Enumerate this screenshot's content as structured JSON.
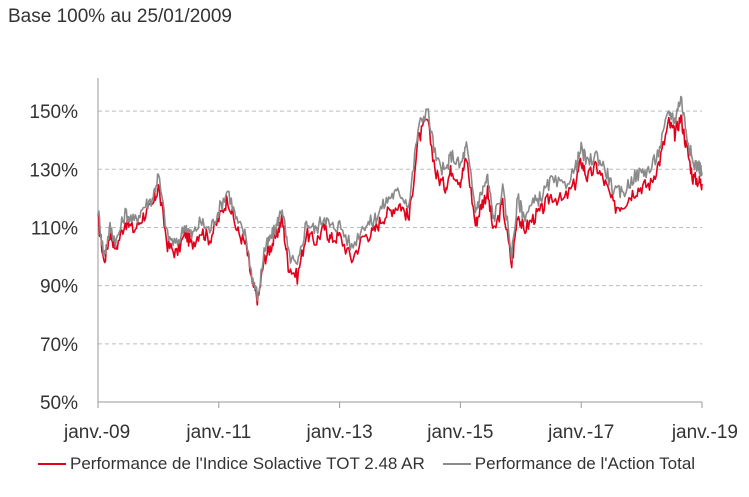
{
  "chart_data": {
    "type": "line",
    "subtitle": "Base 100% au 25/01/2009",
    "ylim": [
      50,
      160
    ],
    "yticks": [
      50,
      70,
      90,
      110,
      130,
      150
    ],
    "ytick_labels": [
      "50%",
      "70%",
      "90%",
      "110%",
      "130%",
      "150%"
    ],
    "xlim": [
      2009.0,
      2019.0
    ],
    "xticks": [
      2009,
      2011,
      2013,
      2015,
      2017,
      2019
    ],
    "xtick_labels": [
      "janv.-09",
      "janv.-11",
      "janv.-13",
      "janv.-15",
      "janv.-17",
      "janv.-19"
    ],
    "grid": "horizontal dashed",
    "legend_position": "bottom",
    "series": [
      {
        "name": "Performance de l'Indice Solactive TOT 2.48 AR",
        "color": "#e3001b",
        "x": [
          2009.0,
          2009.1,
          2009.2,
          2009.3,
          2009.45,
          2009.6,
          2009.75,
          2009.9,
          2010.0,
          2010.15,
          2010.3,
          2010.45,
          2010.55,
          2010.7,
          2010.85,
          2011.0,
          2011.15,
          2011.3,
          2011.45,
          2011.55,
          2011.65,
          2011.75,
          2011.85,
          2011.95,
          2012.05,
          2012.15,
          2012.3,
          2012.45,
          2012.6,
          2012.75,
          2012.85,
          2013.0,
          2013.2,
          2013.4,
          2013.55,
          2013.7,
          2013.85,
          2014.0,
          2014.15,
          2014.3,
          2014.45,
          2014.6,
          2014.75,
          2014.85,
          2015.0,
          2015.1,
          2015.25,
          2015.35,
          2015.45,
          2015.55,
          2015.7,
          2015.85,
          2015.95,
          2016.05,
          2016.2,
          2016.35,
          2016.5,
          2016.7,
          2016.9,
          2017.0,
          2017.1,
          2017.25,
          2017.4,
          2017.55,
          2017.7,
          2017.85,
          2018.0,
          2018.15,
          2018.3,
          2018.45,
          2018.55,
          2018.65,
          2018.75,
          2018.85,
          2018.95,
          2019.0
        ],
        "y": [
          113,
          98,
          108,
          103,
          112,
          109,
          114,
          117,
          124,
          104,
          101,
          108,
          104,
          109,
          106,
          113,
          120,
          109,
          104,
          91,
          85,
          99,
          103,
          107,
          113,
          97,
          93,
          108,
          105,
          110,
          106,
          107,
          99,
          107,
          108,
          113,
          116,
          118,
          113,
          140,
          147,
          128,
          124,
          130,
          126,
          134,
          111,
          118,
          122,
          108,
          118,
          97,
          115,
          109,
          113,
          116,
          121,
          119,
          125,
          133,
          127,
          131,
          125,
          117,
          118,
          122,
          124,
          125,
          133,
          146,
          142,
          148,
          137,
          127,
          126,
          125
        ]
      },
      {
        "name": "Performance de l'Action Total",
        "color": "#8a8a8a",
        "x": [
          2009.0,
          2009.1,
          2009.2,
          2009.3,
          2009.45,
          2009.6,
          2009.75,
          2009.9,
          2010.0,
          2010.15,
          2010.3,
          2010.45,
          2010.55,
          2010.7,
          2010.85,
          2011.0,
          2011.15,
          2011.3,
          2011.45,
          2011.55,
          2011.65,
          2011.75,
          2011.85,
          2011.95,
          2012.05,
          2012.15,
          2012.3,
          2012.45,
          2012.6,
          2012.75,
          2012.85,
          2013.0,
          2013.2,
          2013.4,
          2013.55,
          2013.7,
          2013.85,
          2014.0,
          2014.15,
          2014.3,
          2014.45,
          2014.6,
          2014.75,
          2014.85,
          2015.0,
          2015.1,
          2015.25,
          2015.35,
          2015.45,
          2015.55,
          2015.7,
          2015.85,
          2015.95,
          2016.05,
          2016.2,
          2016.35,
          2016.5,
          2016.7,
          2016.9,
          2017.0,
          2017.1,
          2017.25,
          2017.4,
          2017.55,
          2017.7,
          2017.85,
          2018.0,
          2018.15,
          2018.3,
          2018.45,
          2018.55,
          2018.65,
          2018.75,
          2018.85,
          2018.95,
          2019.0
        ],
        "y": [
          116,
          100,
          110,
          105,
          115,
          112,
          117,
          120,
          128,
          107,
          104,
          111,
          107,
          112,
          109,
          116,
          123,
          112,
          107,
          93,
          86,
          102,
          106,
          110,
          117,
          101,
          96,
          112,
          109,
          114,
          110,
          111,
          103,
          111,
          112,
          117,
          121,
          122,
          118,
          144,
          151,
          133,
          129,
          135,
          131,
          138,
          116,
          122,
          127,
          113,
          123,
          101,
          120,
          114,
          118,
          121,
          126,
          124,
          130,
          137,
          132,
          135,
          130,
          122,
          122,
          127,
          129,
          130,
          137,
          150,
          147,
          155,
          142,
          132,
          131,
          129
        ]
      }
    ]
  }
}
